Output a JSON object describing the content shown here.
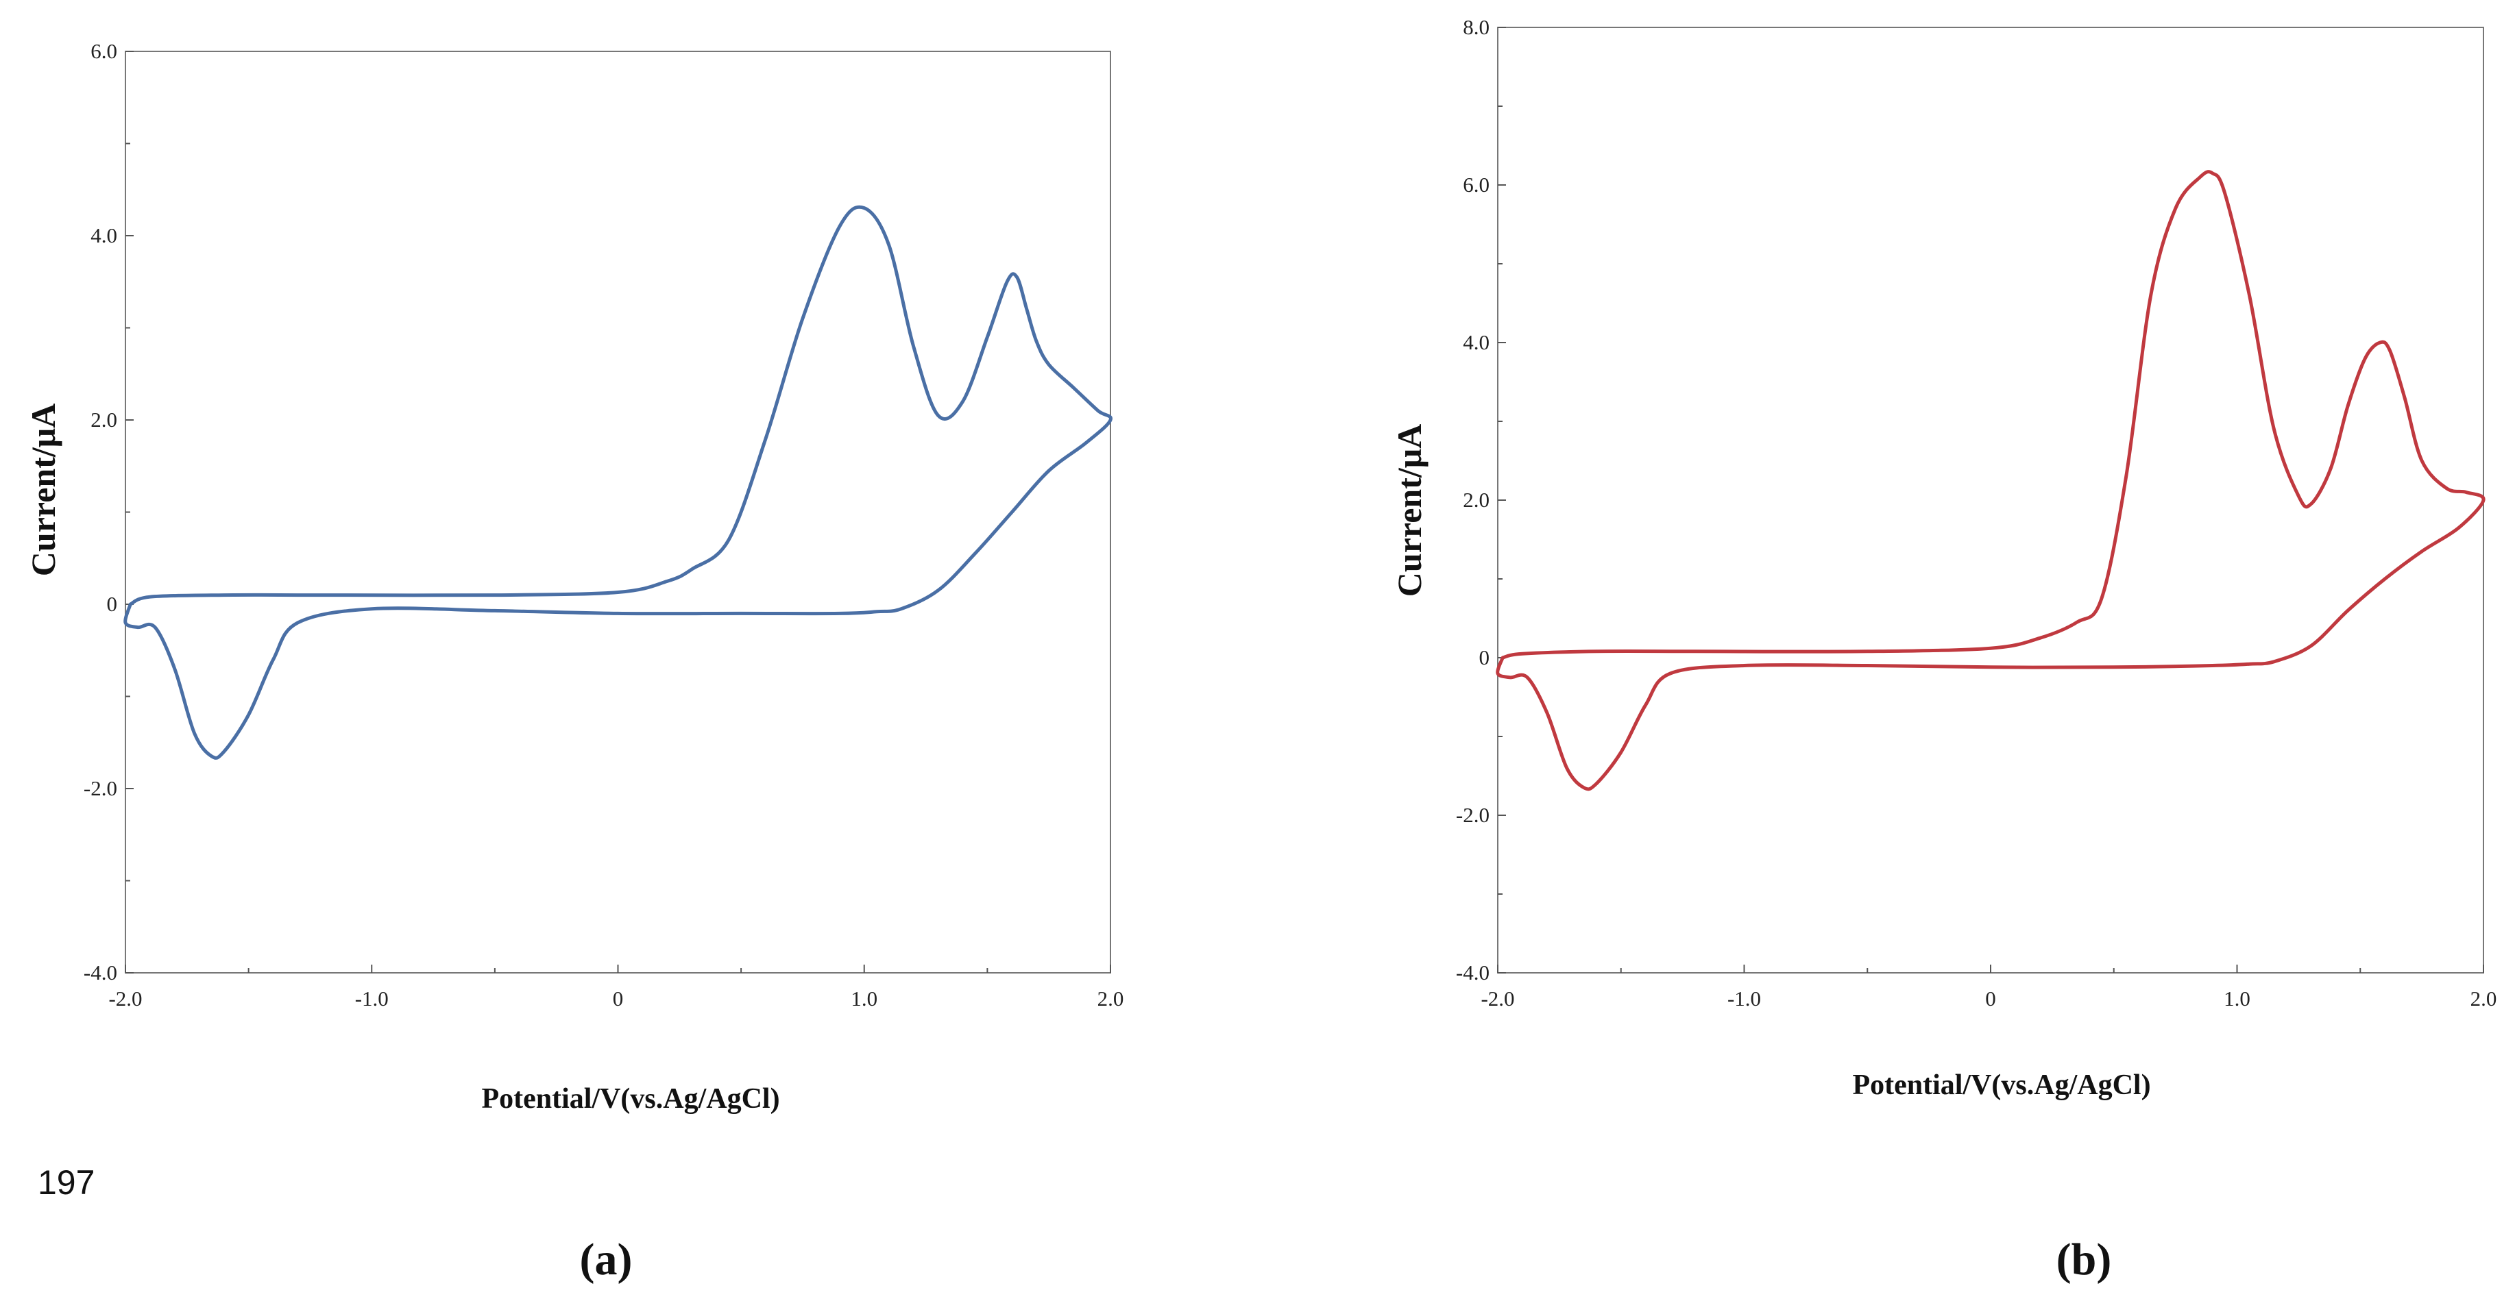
{
  "line_number": "197",
  "chart_data": [
    {
      "type": "line",
      "panel_label": "(a)",
      "xlabel": "Potential/V(vs.Ag/AgCl)",
      "ylabel": "Current/μA",
      "xlim": [
        -2.0,
        2.0
      ],
      "ylim": [
        -4.0,
        6.0
      ],
      "x_ticks": [
        -2.0,
        -1.0,
        0,
        1.0,
        2.0
      ],
      "x_tick_labels": [
        "-2.0",
        "-1.0",
        "0",
        "1.0",
        "2.0"
      ],
      "y_ticks": [
        -4.0,
        -2.0,
        0,
        2.0,
        4.0,
        6.0
      ],
      "y_tick_labels": [
        "-4.0",
        "-2.0",
        "0",
        "2.0",
        "4.0",
        "6.0"
      ],
      "grid": false,
      "color": "#4a6fa5",
      "series": [
        {
          "x": [
            -1.98,
            -1.9,
            -1.6,
            -1.2,
            -0.5,
            0.0,
            0.2,
            0.3,
            0.45,
            0.6,
            0.75,
            0.9,
            1.0,
            1.1,
            1.2,
            1.3,
            1.4,
            1.5,
            1.58,
            1.62,
            1.66,
            1.7,
            1.75,
            1.85,
            1.95,
            2.0,
            1.9,
            1.75,
            1.6,
            1.45,
            1.3,
            1.15,
            1.05,
            0.9,
            0.5,
            0.0,
            -0.5,
            -1.0,
            -1.3,
            -1.4,
            -1.5,
            -1.6,
            -1.65,
            -1.72,
            -1.8,
            -1.88,
            -1.95,
            -2.0,
            -1.98
          ],
          "y": [
            0.0,
            0.08,
            0.1,
            0.1,
            0.1,
            0.13,
            0.25,
            0.38,
            0.7,
            1.8,
            3.1,
            4.1,
            4.3,
            3.9,
            2.8,
            2.05,
            2.2,
            2.9,
            3.5,
            3.55,
            3.2,
            2.85,
            2.6,
            2.35,
            2.1,
            2.0,
            1.75,
            1.45,
            1.0,
            0.55,
            0.15,
            -0.05,
            -0.08,
            -0.1,
            -0.1,
            -0.1,
            -0.07,
            -0.05,
            -0.2,
            -0.6,
            -1.2,
            -1.6,
            -1.65,
            -1.4,
            -0.7,
            -0.25,
            -0.25,
            -0.2,
            0.0
          ]
        }
      ]
    },
    {
      "type": "line",
      "panel_label": "(b)",
      "xlabel": "Potential/V(vs.Ag/AgCl)",
      "ylabel": "Current/μA",
      "xlim": [
        -2.0,
        2.0
      ],
      "ylim": [
        -4.0,
        8.0
      ],
      "x_ticks": [
        -2.0,
        -1.0,
        0,
        1.0,
        2.0
      ],
      "x_tick_labels": [
        "-2.0",
        "-1.0",
        "0",
        "1.0",
        "2.0"
      ],
      "y_ticks": [
        -4.0,
        -2.0,
        0,
        2.0,
        4.0,
        6.0,
        8.0
      ],
      "y_tick_labels": [
        "-4.0",
        "-2.0",
        "0",
        "2.0",
        "4.0",
        "6.0",
        "8.0"
      ],
      "grid": false,
      "color": "#c0393f",
      "series": [
        {
          "x": [
            -1.98,
            -1.9,
            -1.6,
            -1.2,
            -0.5,
            0.0,
            0.2,
            0.35,
            0.45,
            0.55,
            0.65,
            0.75,
            0.85,
            0.9,
            0.95,
            1.05,
            1.15,
            1.25,
            1.3,
            1.38,
            1.45,
            1.52,
            1.58,
            1.62,
            1.68,
            1.75,
            1.85,
            1.93,
            2.0,
            1.9,
            1.75,
            1.6,
            1.45,
            1.3,
            1.15,
            1.05,
            0.9,
            0.5,
            0.0,
            -0.5,
            -1.0,
            -1.3,
            -1.4,
            -1.5,
            -1.6,
            -1.65,
            -1.72,
            -1.8,
            -1.88,
            -1.95,
            -2.0,
            -1.98
          ],
          "y": [
            0.0,
            0.05,
            0.08,
            0.08,
            0.08,
            0.12,
            0.25,
            0.45,
            0.75,
            2.3,
            4.6,
            5.7,
            6.1,
            6.15,
            5.9,
            4.6,
            2.9,
            2.05,
            1.95,
            2.4,
            3.2,
            3.8,
            4.0,
            3.9,
            3.3,
            2.5,
            2.15,
            2.1,
            2.0,
            1.65,
            1.35,
            1.0,
            0.6,
            0.15,
            -0.05,
            -0.08,
            -0.1,
            -0.12,
            -0.12,
            -0.1,
            -0.1,
            -0.2,
            -0.6,
            -1.2,
            -1.6,
            -1.65,
            -1.4,
            -0.7,
            -0.25,
            -0.25,
            -0.2,
            0.0
          ]
        }
      ]
    }
  ]
}
